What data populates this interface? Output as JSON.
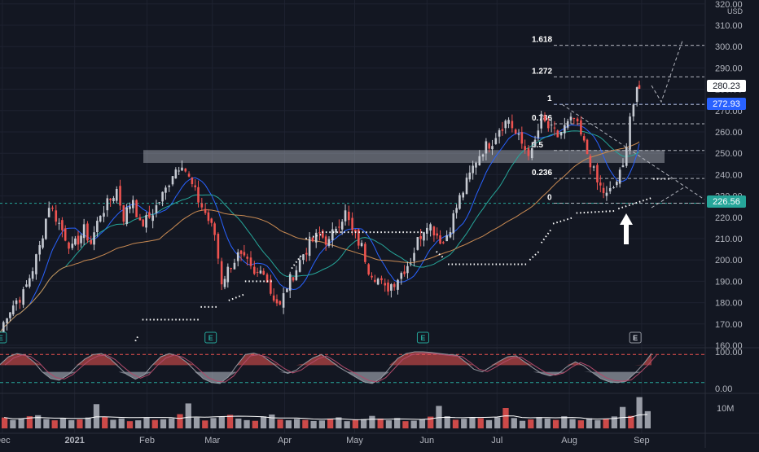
{
  "chart_data": [
    {
      "type": "candlestick",
      "title": "",
      "y_axis": {
        "currency": "USD",
        "ticks": [
          "320.00",
          "310.00",
          "300.00",
          "290.00",
          "280.00",
          "270.00",
          "260.00",
          "250.00",
          "240.00",
          "230.00",
          "220.00",
          "210.00",
          "200.00",
          "190.00",
          "180.00",
          "170.00",
          "160.00"
        ],
        "ylim": [
          160,
          322
        ],
        "scale": "linear"
      },
      "x_axis": {
        "ticks": [
          "Dec",
          "2021",
          "Feb",
          "Mar",
          "Apr",
          "May",
          "Jun",
          "Jul",
          "Aug",
          "Sep"
        ],
        "date_range": [
          "2020-11-30",
          "2021-09-15"
        ]
      },
      "price_labels": [
        {
          "value": "280.23",
          "color": "#ffffff"
        },
        {
          "value": "272.93",
          "color": "#2962ff"
        },
        {
          "value": "226.56",
          "color": "#26a69a"
        }
      ],
      "fibonacci_levels": [
        {
          "label": "1.618",
          "value": 300.6
        },
        {
          "label": "1.272",
          "value": 285.8
        },
        {
          "label": "1",
          "value": 272.9
        },
        {
          "label": "0.786",
          "value": 263.8
        },
        {
          "label": "0.5",
          "value": 251.3
        },
        {
          "label": "0.236",
          "value": 238.2
        },
        {
          "label": "0",
          "value": 226.6
        }
      ],
      "resistance_zone": [
        245.5,
        251.5
      ],
      "horizontal_lines": [
        272.93,
        226.56
      ],
      "earnings_markers": [
        "E",
        "E",
        "E",
        "E"
      ],
      "close_series": [
        [
          "2020-11-30",
          166
        ],
        [
          "2020-12-03",
          175
        ],
        [
          "2020-12-07",
          181
        ],
        [
          "2020-12-10",
          184
        ],
        [
          "2020-12-14",
          196
        ],
        [
          "2020-12-17",
          206
        ],
        [
          "2020-12-21",
          226
        ],
        [
          "2020-12-24",
          220
        ],
        [
          "2020-12-28",
          211
        ],
        [
          "2020-12-31",
          205
        ],
        [
          "2021-01-05",
          214
        ],
        [
          "2021-01-08",
          208
        ],
        [
          "2021-01-12",
          222
        ],
        [
          "2021-01-15",
          226
        ],
        [
          "2021-01-19",
          233
        ],
        [
          "2021-01-22",
          220
        ],
        [
          "2021-01-26",
          229
        ],
        [
          "2021-01-29",
          216
        ],
        [
          "2021-02-02",
          220
        ],
        [
          "2021-02-05",
          225
        ],
        [
          "2021-02-09",
          233
        ],
        [
          "2021-02-12",
          241
        ],
        [
          "2021-02-16",
          246
        ],
        [
          "2021-02-19",
          238
        ],
        [
          "2021-02-23",
          228
        ],
        [
          "2021-02-26",
          222
        ],
        [
          "2021-03-02",
          212
        ],
        [
          "2021-03-05",
          190
        ],
        [
          "2021-03-09",
          198
        ],
        [
          "2021-03-12",
          202
        ],
        [
          "2021-03-16",
          198
        ],
        [
          "2021-03-19",
          192
        ],
        [
          "2021-03-23",
          196
        ],
        [
          "2021-03-26",
          185
        ],
        [
          "2021-03-30",
          178
        ],
        [
          "2021-04-02",
          188
        ],
        [
          "2021-04-06",
          196
        ],
        [
          "2021-04-09",
          203
        ],
        [
          "2021-04-13",
          209
        ],
        [
          "2021-04-16",
          212
        ],
        [
          "2021-04-20",
          208
        ],
        [
          "2021-04-23",
          216
        ],
        [
          "2021-04-27",
          222
        ],
        [
          "2021-04-30",
          213
        ],
        [
          "2021-05-04",
          206
        ],
        [
          "2021-05-07",
          196
        ],
        [
          "2021-05-11",
          191
        ],
        [
          "2021-05-14",
          186
        ],
        [
          "2021-05-18",
          190
        ],
        [
          "2021-05-21",
          194
        ],
        [
          "2021-05-25",
          200
        ],
        [
          "2021-05-28",
          209
        ],
        [
          "2021-06-01",
          218
        ],
        [
          "2021-06-04",
          214
        ],
        [
          "2021-06-08",
          208
        ],
        [
          "2021-06-11",
          216
        ],
        [
          "2021-06-15",
          229
        ],
        [
          "2021-06-18",
          236
        ],
        [
          "2021-06-22",
          247
        ],
        [
          "2021-06-25",
          252
        ],
        [
          "2021-06-29",
          256
        ],
        [
          "2021-07-02",
          262
        ],
        [
          "2021-07-06",
          266
        ],
        [
          "2021-07-09",
          259
        ],
        [
          "2021-07-13",
          252
        ],
        [
          "2021-07-16",
          250
        ],
        [
          "2021-07-20",
          266
        ],
        [
          "2021-07-23",
          262
        ],
        [
          "2021-07-27",
          258
        ],
        [
          "2021-07-30",
          262
        ],
        [
          "2021-08-03",
          266
        ],
        [
          "2021-08-06",
          258
        ],
        [
          "2021-08-10",
          246
        ],
        [
          "2021-08-13",
          236
        ],
        [
          "2021-08-17",
          230
        ],
        [
          "2021-08-20",
          234
        ],
        [
          "2021-08-24",
          243
        ],
        [
          "2021-08-27",
          268
        ],
        [
          "2021-08-30",
          278
        ],
        [
          "2021-08-31",
          280.23
        ]
      ]
    },
    {
      "type": "area",
      "series_name": "oscillator",
      "y_axis": {
        "ticks": [
          "100.00",
          "0.00"
        ],
        "ylim": [
          -10,
          110
        ]
      },
      "values": [
        62,
        85,
        95,
        90,
        70,
        40,
        20,
        15,
        30,
        55,
        78,
        92,
        95,
        80,
        55,
        32,
        18,
        30,
        60,
        85,
        95,
        88,
        70,
        45,
        20,
        8,
        5,
        25,
        60,
        92,
        96,
        88,
        70,
        50,
        35,
        45,
        65,
        82,
        92,
        75,
        55,
        40,
        25,
        10,
        5,
        20,
        50,
        80,
        95,
        100,
        100,
        98,
        95,
        92,
        90,
        70,
        48,
        40,
        55,
        72,
        85,
        88,
        70,
        52,
        35,
        28,
        35,
        55,
        70,
        58,
        38,
        20,
        10,
        8,
        12,
        35,
        62,
        95
      ]
    },
    {
      "type": "bar",
      "series_name": "volume",
      "y_axis": {
        "ticks": [
          "10M"
        ],
        "ylim": [
          0,
          19000000
        ]
      },
      "values": [
        6200000,
        4800000,
        5600000,
        6900000,
        7500000,
        5300000,
        4600000,
        5800000,
        4700000,
        5100000,
        6200000,
        13800000,
        6600000,
        4900000,
        5700000,
        4100000,
        4600000,
        6300000,
        4800000,
        5200000,
        5700000,
        8100000,
        14200000,
        6100000,
        4500000,
        5900000,
        6700000,
        7700000,
        5600000,
        4700000,
        4300000,
        6800000,
        7900000,
        5100000,
        4600000,
        5400000,
        4800000,
        4200000,
        4500000,
        5600000,
        6300000,
        4100000,
        4800000,
        5300000,
        7100000,
        5600000,
        4600000,
        5900000,
        4100000,
        4400000,
        5200000,
        6700000,
        12800000,
        6900000,
        4900000,
        5500000,
        6100000,
        5800000,
        4700000,
        6300000,
        11600000,
        5900000,
        4300000,
        5100000,
        6400000,
        5600000,
        4800000,
        6900000,
        5300000,
        4600000,
        5800000,
        4700000,
        5300000,
        6800000,
        12200000,
        7100000,
        17800000,
        9800000
      ]
    }
  ]
}
